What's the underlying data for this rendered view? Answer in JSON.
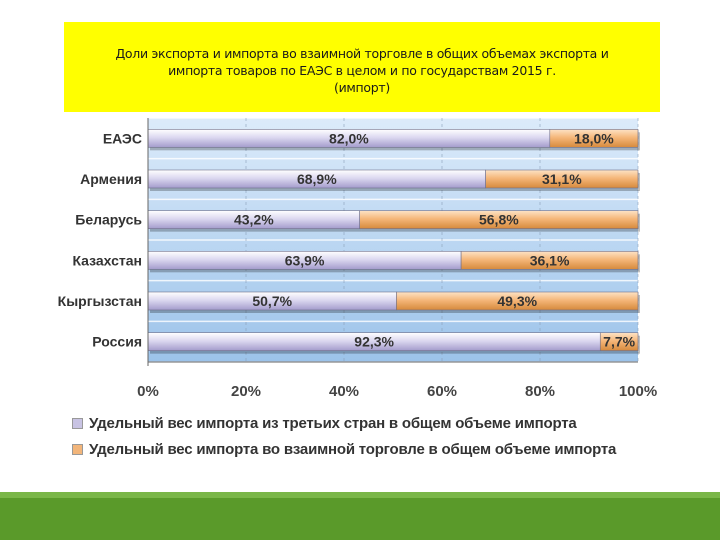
{
  "title": {
    "line1": "Доли экспорта и импорта во взаимной торговле в общих объемах экспорта и",
    "line2": "импорта товаров по ЕАЭС в целом и по государствам  2015 г.",
    "line3": "(импорт)"
  },
  "colors": {
    "title_background": "#ffff00",
    "third_countries": "#c8c3e3",
    "mutual_trade": "#f2b57a",
    "footer": "#5a9a2a"
  },
  "chart_data": {
    "type": "bar",
    "orientation": "horizontal",
    "stacked": true,
    "categories": [
      "ЕАЭС",
      "Армения",
      "Беларусь",
      "Казахстан",
      "Кыргызстан",
      "Россия"
    ],
    "series": [
      {
        "name": "Удельный вес импорта из третьих стран в общем объеме импорта",
        "values": [
          82.0,
          68.9,
          43.2,
          63.9,
          50.7,
          92.3
        ],
        "labels": [
          "82,0%",
          "68,9%",
          "43,2%",
          "63,9%",
          "50,7%",
          "92,3%"
        ]
      },
      {
        "name": "Удельный вес импорта во взаимной торговле в общем объеме импорта",
        "values": [
          18.0,
          31.1,
          56.8,
          36.1,
          49.3,
          7.7
        ],
        "labels": [
          "18,0%",
          "31,1%",
          "56,8%",
          "36,1%",
          "49,3%",
          "7,7%"
        ]
      }
    ],
    "xlim": [
      0,
      100
    ],
    "xticks": [
      "0%",
      "20%",
      "40%",
      "60%",
      "80%",
      "100%"
    ],
    "legend_position": "bottom",
    "grid": true
  }
}
